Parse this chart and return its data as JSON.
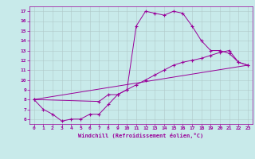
{
  "xlabel": "Windchill (Refroidissement éolien,°C)",
  "bg_color": "#c8eaea",
  "line_color": "#990099",
  "grid_color": "#b0c8c8",
  "xlim": [
    -0.5,
    23.5
  ],
  "ylim": [
    5.5,
    17.5
  ],
  "xticks": [
    0,
    1,
    2,
    3,
    4,
    5,
    6,
    7,
    8,
    9,
    10,
    11,
    12,
    13,
    14,
    15,
    16,
    17,
    18,
    19,
    20,
    21,
    22,
    23
  ],
  "yticks": [
    6,
    7,
    8,
    9,
    10,
    11,
    12,
    13,
    14,
    15,
    16,
    17
  ],
  "line1_x": [
    0,
    1,
    2,
    3,
    4,
    5,
    6,
    7,
    8,
    9,
    10,
    11,
    12,
    13,
    14,
    15,
    16,
    17,
    18,
    19,
    20,
    21,
    22,
    23
  ],
  "line1_y": [
    8.0,
    7.0,
    6.5,
    5.8,
    6.0,
    6.0,
    6.5,
    6.5,
    7.5,
    8.5,
    9.0,
    15.5,
    17.0,
    16.8,
    16.6,
    17.0,
    16.8,
    15.5,
    14.0,
    13.0,
    13.0,
    12.7,
    11.8,
    11.5
  ],
  "line2_x": [
    0,
    7,
    8,
    9,
    10,
    11,
    12,
    13,
    14,
    15,
    16,
    17,
    18,
    19,
    20,
    21,
    22,
    23
  ],
  "line2_y": [
    8.0,
    7.8,
    8.5,
    8.5,
    9.0,
    9.5,
    10.0,
    10.5,
    11.0,
    11.5,
    11.8,
    12.0,
    12.2,
    12.5,
    12.8,
    13.0,
    11.8,
    11.5
  ],
  "line3_x": [
    0,
    23
  ],
  "line3_y": [
    8.0,
    11.5
  ]
}
